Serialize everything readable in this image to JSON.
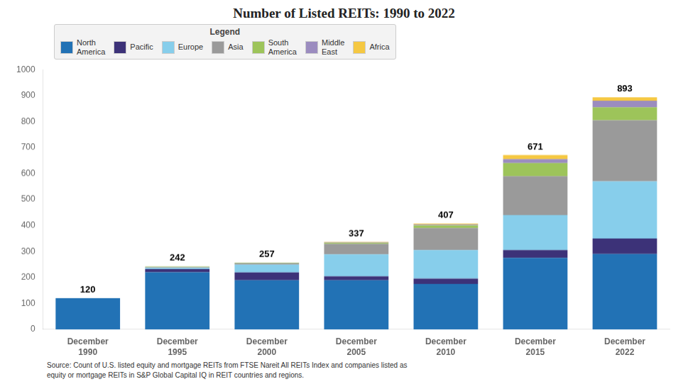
{
  "chart_data": {
    "type": "bar",
    "title": "Number of Listed REITs: 1990 to 2022",
    "categories": [
      "December\n1990",
      "December\n1995",
      "December\n2000",
      "December\n2005",
      "December\n2010",
      "December\n2015",
      "December\n2022"
    ],
    "stacked": true,
    "series": [
      {
        "name": "North\nAmerica",
        "color": "#2272b5",
        "values": [
          120,
          220,
          189,
          189,
          175,
          275,
          290
        ]
      },
      {
        "name": "Pacific",
        "color": "#3c3278",
        "values": [
          0,
          12,
          30,
          15,
          20,
          30,
          60
        ]
      },
      {
        "name": "Europe",
        "color": "#87ceeb",
        "values": [
          0,
          5,
          30,
          85,
          110,
          135,
          220
        ]
      },
      {
        "name": "Asia",
        "color": "#9a9a9a",
        "values": [
          0,
          3,
          6,
          40,
          85,
          150,
          235
        ]
      },
      {
        "name": "South\nAmerica",
        "color": "#9dc45a",
        "values": [
          0,
          2,
          2,
          4,
          10,
          50,
          50
        ]
      },
      {
        "name": "Middle\nEast",
        "color": "#9b8cbf",
        "values": [
          0,
          0,
          0,
          2,
          4,
          15,
          25
        ]
      },
      {
        "name": "Africa",
        "color": "#f5c842",
        "values": [
          0,
          0,
          0,
          2,
          3,
          16,
          13
        ]
      }
    ],
    "totals": [
      120,
      242,
      257,
      337,
      407,
      671,
      893
    ],
    "ylim": [
      0,
      1000
    ],
    "yticks": [
      0,
      100,
      200,
      300,
      400,
      500,
      600,
      700,
      800,
      900,
      1000
    ],
    "grid": false,
    "legend": "upper left",
    "legend_title": "Legend",
    "annotations": [
      "Source: Count of U.S. listed equity and mortgage REITs from FTSE Nareit All REITs Index and companies listed as\nequity or mortgage REITs in S&P Global Capital IQ in REIT countries and regions."
    ]
  }
}
